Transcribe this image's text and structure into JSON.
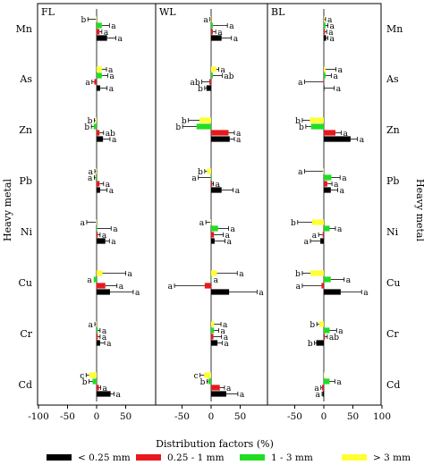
{
  "chart_data": {
    "type": "bar",
    "orientation": "horizontal",
    "xlabel": "Distribution factors (%)",
    "ylabel_left": "Heavy metal",
    "ylabel_right": "Heavy metal",
    "metals": [
      "Mn",
      "As",
      "Zn",
      "Pb",
      "Ni",
      "Cu",
      "Cr",
      "Cd"
    ],
    "legend": [
      {
        "name": "< 0.25 mm",
        "color": "#000000"
      },
      {
        "name": "0.25 - 1 mm",
        "color": "#e8191c"
      },
      {
        "name": "1 - 3 mm",
        "color": "#22dd22"
      },
      {
        "name": "> 3 mm",
        "color": "#ffff33"
      }
    ],
    "series_order_top_to_bottom": [
      "> 3 mm",
      "1 - 3 mm",
      "0.25 - 1 mm",
      "< 0.25 mm"
    ],
    "grid": false,
    "panels": [
      {
        "name": "FL",
        "x_ticks": [
          -100,
          -50,
          0,
          50
        ],
        "xlim": [
          -100,
          100
        ],
        "data": {
          "Mn": {
            "values": [
              -1,
              9,
              5,
              18
            ],
            "errors": [
              14,
              13,
              4,
              15
            ],
            "labels": [
              "b",
              "a",
              "a",
              "a"
            ]
          },
          "As": {
            "values": [
              9,
              9,
              -4,
              6
            ],
            "errors": [
              8,
              10,
              4,
              12
            ],
            "labels": [
              "a",
              "a",
              "a",
              "a"
            ]
          },
          "Zn": {
            "values": [
              -2,
              -5,
              5,
              11
            ],
            "errors": [
              2,
              4,
              7,
              12
            ],
            "labels": [
              "b",
              "b",
              "ab",
              "a"
            ]
          },
          "Pb": {
            "values": [
              -1,
              -2,
              5,
              6
            ],
            "errors": [
              2,
              2,
              7,
              12
            ],
            "labels": [
              "a",
              "a",
              "a",
              "a"
            ]
          },
          "Ni": {
            "values": [
              -1,
              1,
              2,
              15
            ],
            "errors": [
              16,
              24,
              4,
              7
            ],
            "labels": [
              "a",
              "a",
              "a",
              "a"
            ]
          },
          "Cu": {
            "values": [
              10,
              -5,
              15,
              23
            ],
            "errors": [
              40,
              0,
              20,
              40
            ],
            "labels": [
              "a",
              "a",
              "a",
              "a"
            ]
          },
          "Cr": {
            "values": [
              -1,
              2,
              2,
              6
            ],
            "errors": [
              2,
              4,
              4,
              8
            ],
            "labels": [
              "a",
              "a",
              "a",
              "a"
            ]
          },
          "Cd": {
            "values": [
              -13,
              -7,
              4,
              24
            ],
            "errors": [
              5,
              6,
              3,
              6
            ],
            "labels": [
              "c",
              "b",
              "a",
              "a"
            ]
          }
        }
      },
      {
        "name": "WL",
        "x_ticks": [
          -50,
          0,
          50
        ],
        "xlim": [
          -100,
          100
        ],
        "data": {
          "Mn": {
            "values": [
              -1,
              3,
              3,
              18
            ],
            "errors": [
              1,
              25,
              5,
              17
            ],
            "labels": [
              "a",
              "a",
              "a",
              "a"
            ]
          },
          "As": {
            "values": [
              9,
              3,
              -3,
              -8
            ],
            "errors": [
              4,
              16,
              13,
              3
            ],
            "labels": [
              "a",
              "ab",
              "ab",
              "b"
            ]
          },
          "Zn": {
            "values": [
              -20,
              -25,
              30,
              32
            ],
            "errors": [
              19,
              24,
              10,
              8
            ],
            "labels": [
              "b",
              "b",
              "a",
              "a"
            ]
          },
          "Pb": {
            "values": [
              -7,
              -1,
              2,
              18
            ],
            "errors": [
              4,
              21,
              2,
              20
            ],
            "labels": [
              "b",
              "a",
              "a",
              "a"
            ]
          },
          "Ni": {
            "values": [
              -1,
              12,
              5,
              6
            ],
            "errors": [
              8,
              18,
              16,
              18
            ],
            "labels": [
              "a",
              "a",
              "a",
              "a"
            ]
          },
          "Cu": {
            "values": [
              10,
              1,
              -11,
              31
            ],
            "errors": [
              35,
              0,
              52,
              48
            ],
            "labels": [
              "a",
              "a",
              "a",
              "a"
            ]
          },
          "Cr": {
            "values": [
              5,
              5,
              4,
              11
            ],
            "errors": [
              12,
              8,
              14,
              8
            ],
            "labels": [
              "a",
              "a",
              "a",
              "a"
            ]
          },
          "Cd": {
            "values": [
              -12,
              -5,
              15,
              26
            ],
            "errors": [
              7,
              2,
              8,
              20
            ],
            "labels": [
              "c",
              "b",
              "a",
              "a"
            ]
          }
        }
      },
      {
        "name": "BL",
        "x_ticks": [
          -50,
          0,
          50,
          100
        ],
        "xlim": [
          -100,
          100
        ],
        "data": {
          "Mn": {
            "values": [
              1,
              3,
              2,
              4
            ],
            "errors": [
              2,
              4,
              3,
              3
            ],
            "labels": [
              "a",
              "a",
              "a",
              "a"
            ]
          },
          "As": {
            "values": [
              3,
              3,
              -1,
              1
            ],
            "errors": [
              18,
              10,
              32,
              17
            ],
            "labels": [
              "a",
              "a",
              "a",
              "a"
            ]
          },
          "Zn": {
            "values": [
              -24,
              -22,
              20,
              46
            ],
            "errors": [
              13,
              9,
              10,
              12
            ],
            "labels": [
              "b",
              "b",
              "a",
              "a"
            ]
          },
          "Pb": {
            "values": [
              -1,
              13,
              6,
              12
            ],
            "errors": [
              32,
              15,
              8,
              12
            ],
            "labels": [
              "a",
              "a",
              "a",
              "a"
            ]
          },
          "Ni": {
            "values": [
              -20,
              10,
              -2,
              -6
            ],
            "errors": [
              25,
              10,
              7,
              17
            ],
            "labels": [
              "b",
              "a",
              "a",
              "a"
            ]
          },
          "Cu": {
            "values": [
              -23,
              12,
              -4,
              29
            ],
            "errors": [
              14,
              23,
              33,
              36
            ],
            "labels": [
              "b",
              "a",
              "a",
              "a"
            ]
          },
          "Cr": {
            "values": [
              -8,
              10,
              2,
              -13
            ],
            "errors": [
              4,
              12,
              4,
              3
            ],
            "labels": [
              "b",
              "a",
              "ab",
              "b"
            ]
          },
          "Cd": {
            "values": [
              0,
              10,
              -3,
              -2
            ],
            "errors": [
              0,
              9,
              2,
              1
            ],
            "labels": [
              "",
              "a",
              "a",
              "a"
            ]
          }
        }
      }
    ]
  }
}
